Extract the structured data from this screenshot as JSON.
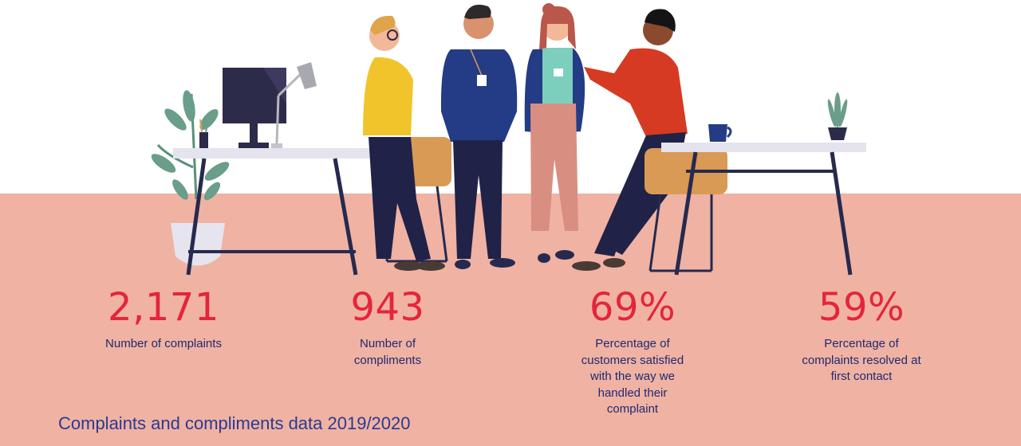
{
  "colors": {
    "floor": "#f0b2a3",
    "stat_value": "#e4253a",
    "stat_label": "#1f2a6f",
    "caption": "#2b3a8f"
  },
  "illustration": {
    "icon": "office-team-illustration"
  },
  "stats": [
    {
      "value": "2,171",
      "label": "Number of complaints"
    },
    {
      "value": "943",
      "label": "Number of compliments"
    },
    {
      "value": "69%",
      "label": "Percentage of customers satisfied with the way we handled their complaint"
    },
    {
      "value": "59%",
      "label": "Percentage of complaints resolved at first contact"
    }
  ],
  "caption": "Complaints and compliments data 2019/2020"
}
